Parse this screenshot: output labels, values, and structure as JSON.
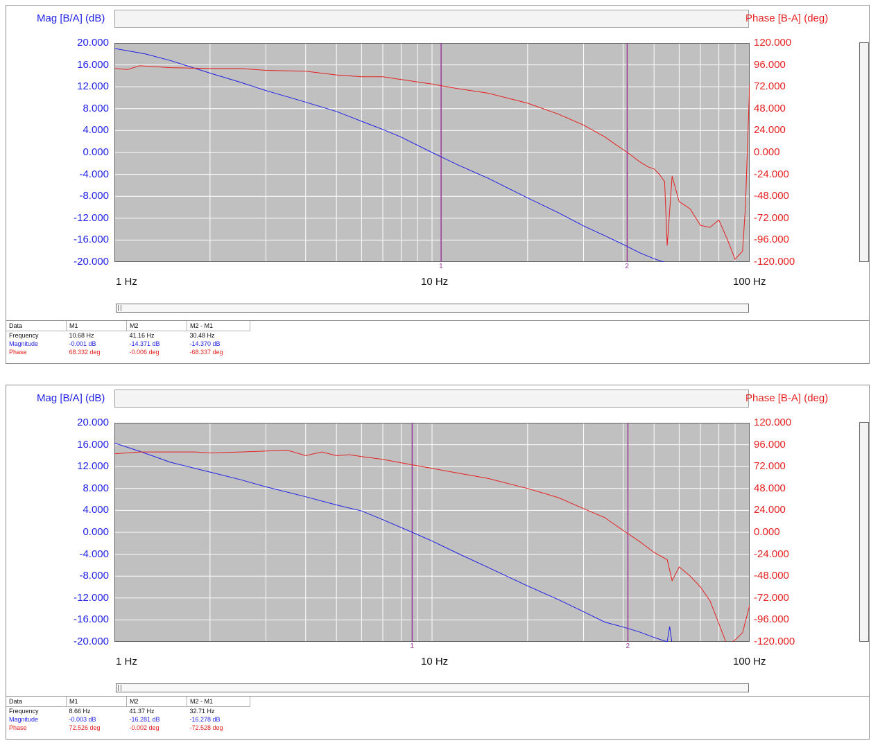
{
  "axes": {
    "mag_label": "Mag [B/A] (dB)",
    "phase_label": "Phase [B-A] (deg)",
    "mag_ticks": [
      "20.000",
      "16.000",
      "12.000",
      "8.000",
      "4.000",
      "0.000",
      "-4.000",
      "-8.000",
      "-12.000",
      "-16.000",
      "-20.000"
    ],
    "phase_ticks": [
      "120.000",
      "96.000",
      "72.000",
      "48.000",
      "24.000",
      "0.000",
      "-24.000",
      "-48.000",
      "-72.000",
      "-96.000",
      "-120.000"
    ],
    "x_ticks": [
      "1 Hz",
      "10 Hz",
      "100 Hz"
    ]
  },
  "colors": {
    "magnitude": "#1f1fe6",
    "phase": "#e62020",
    "marker": "#9b3a9b",
    "plot_bg": "#c0c0c0"
  },
  "panels": [
    {
      "markers": {
        "m1_label": "1",
        "m2_label": "2"
      },
      "table": {
        "headers": [
          "Data",
          "M1",
          "M2",
          "M2 - M1"
        ],
        "rows": [
          {
            "label": "Frequency",
            "m1": "10.68 Hz",
            "m2": "41.16 Hz",
            "diff": "30.48 Hz"
          },
          {
            "label": "Magnitude",
            "m1": "-0.001 dB",
            "m2": "-14.371 dB",
            "diff": "-14.370 dB"
          },
          {
            "label": "Phase",
            "m1": "68.332 deg",
            "m2": "-0.006 deg",
            "diff": "-68.337 deg"
          }
        ]
      }
    },
    {
      "markers": {
        "m1_label": "1",
        "m2_label": "2"
      },
      "table": {
        "headers": [
          "Data",
          "M1",
          "M2",
          "M2 - M1"
        ],
        "rows": [
          {
            "label": "Frequency",
            "m1": "8.66 Hz",
            "m2": "41.37 Hz",
            "diff": "32.71 Hz"
          },
          {
            "label": "Magnitude",
            "m1": "-0.003 dB",
            "m2": "-16.281 dB",
            "diff": "-16.278 dB"
          },
          {
            "label": "Phase",
            "m1": "72.526 deg",
            "m2": "-0.002 deg",
            "diff": "-72.528 deg"
          }
        ]
      }
    }
  ],
  "chart_data": [
    {
      "type": "line",
      "x_scale": "log",
      "xlim": [
        1,
        100
      ],
      "ylim": [
        -20,
        20
      ],
      "y2lim": [
        -120,
        120
      ],
      "markers_x": [
        10.68,
        41.16
      ],
      "series": [
        {
          "name": "Magnitude",
          "axis": "left",
          "x": [
            1,
            1.25,
            1.5,
            2,
            2.5,
            3,
            4,
            5,
            6,
            7,
            8,
            10,
            12,
            15,
            20,
            25,
            30,
            35,
            40,
            45,
            50,
            55,
            60
          ],
          "y": [
            19,
            18,
            16.8,
            14.5,
            12.8,
            11.3,
            9.2,
            7.5,
            5.7,
            4.2,
            2.8,
            0,
            -2.2,
            -4.7,
            -8.3,
            -11,
            -13.4,
            -15.2,
            -16.8,
            -18.3,
            -19.4,
            -20.2,
            -21
          ]
        },
        {
          "name": "Phase",
          "axis": "right",
          "x": [
            1,
            1.1,
            1.2,
            1.5,
            2,
            2.5,
            3,
            4,
            5,
            6,
            7,
            8,
            10,
            12,
            15,
            20,
            25,
            30,
            35,
            40,
            42,
            45,
            48,
            50,
            52,
            54,
            55,
            57,
            60,
            62,
            65,
            70,
            75,
            80,
            85,
            90,
            95,
            97,
            100
          ],
          "y": [
            92,
            91,
            95,
            93,
            92,
            92,
            90,
            89,
            85,
            83,
            83,
            80,
            75,
            70,
            65,
            54,
            42,
            30,
            17,
            3,
            -2,
            -10,
            -16,
            -18,
            -24,
            -32,
            -102,
            -26,
            -54,
            -57,
            -62,
            -80,
            -82,
            -74,
            -95,
            -117,
            -108,
            -60,
            75
          ]
        }
      ]
    },
    {
      "type": "line",
      "x_scale": "log",
      "xlim": [
        1,
        100
      ],
      "ylim": [
        -20,
        20
      ],
      "y2lim": [
        -120,
        120
      ],
      "markers_x": [
        8.66,
        41.37
      ],
      "series": [
        {
          "name": "Magnitude",
          "axis": "left",
          "x": [
            1,
            1.2,
            1.5,
            2,
            2.5,
            3,
            4,
            5,
            6,
            7,
            8.66,
            10,
            12,
            15,
            20,
            25,
            30,
            35,
            40,
            45,
            50,
            55,
            56,
            57,
            60
          ],
          "y": [
            16.3,
            14.8,
            12.8,
            11,
            9.6,
            8.3,
            6.5,
            5,
            3.9,
            2.3,
            0,
            -1.6,
            -3.8,
            -6.4,
            -9.8,
            -12.3,
            -14.5,
            -16.4,
            -17.3,
            -18.2,
            -19.2,
            -20,
            -17.2,
            -20.4,
            -21
          ]
        },
        {
          "name": "Phase",
          "axis": "right",
          "x": [
            1,
            1.2,
            1.5,
            1.8,
            2,
            2.5,
            3,
            3.5,
            4,
            4.5,
            5,
            5.5,
            6,
            7,
            8.66,
            10,
            12,
            15,
            20,
            25,
            30,
            35,
            40,
            45,
            50,
            55,
            57,
            60,
            65,
            70,
            75,
            80,
            85,
            90,
            95,
            100
          ],
          "y": [
            86,
            88,
            88,
            88,
            87,
            88,
            89,
            90,
            84,
            88,
            84,
            85,
            83,
            80,
            74,
            70,
            65,
            59,
            48,
            38,
            26,
            16,
            2,
            -10,
            -22,
            -30,
            -53,
            -38,
            -48,
            -60,
            -75,
            -100,
            -124,
            -118,
            -110,
            -80
          ]
        }
      ]
    }
  ]
}
